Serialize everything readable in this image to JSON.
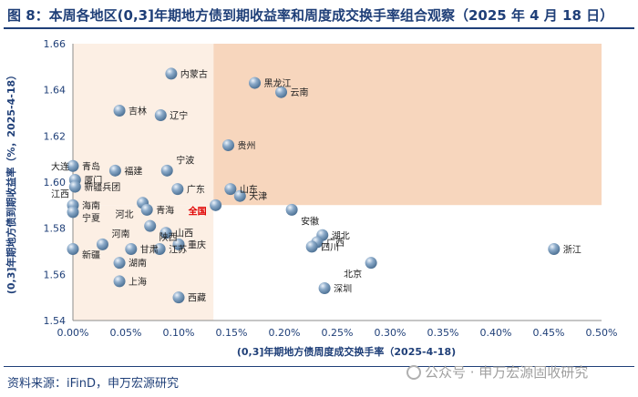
{
  "header": {
    "title": "图 8：本周各地区(0,3]年期地方债到期收益率和周度成交换手率组合观察（2025 年 4 月 18 日）"
  },
  "footer": {
    "source": "资料来源：iFinD，申万宏源研究",
    "watermark": "公众号 · 申万宏源固收研究"
  },
  "colors": {
    "title": "#1f3f78",
    "quadrant_top_right": "#f7d6bd",
    "quadrant_light": "#fcefe4",
    "quadrant_bottom_right": "#ffffff",
    "point": "#8aa9c8",
    "highlight_label": "#e00000",
    "axis_label": "#1f3f78"
  },
  "chart_data": {
    "type": "scatter",
    "xlabel": "(0,3]年期地方债周度成交换手率（2025-4-18)",
    "ylabel": "(0,3]年期地方债到期收益率（%，2025-4-18）",
    "xlim": [
      0,
      0.5
    ],
    "ylim": [
      1.54,
      1.66
    ],
    "x_unit": "percent",
    "y_unit": "percent",
    "x_ticks": [
      "0.00%",
      "0.05%",
      "0.10%",
      "0.15%",
      "0.20%",
      "0.25%",
      "0.30%",
      "0.35%",
      "0.40%",
      "0.45%",
      "0.50%"
    ],
    "y_ticks": [
      "1.54",
      "1.56",
      "1.58",
      "1.60",
      "1.62",
      "1.64",
      "1.66"
    ],
    "x_tick_values": [
      0,
      0.05,
      0.1,
      0.15,
      0.2,
      0.25,
      0.3,
      0.35,
      0.4,
      0.45,
      0.5
    ],
    "y_tick_values": [
      1.54,
      1.56,
      1.58,
      1.6,
      1.62,
      1.64,
      1.66
    ],
    "quadrant_split": {
      "x": 0.133,
      "y": 1.59
    },
    "grid": false,
    "legend": "none",
    "points": [
      {
        "label": "内蒙古",
        "x": 0.093,
        "y": 1.647,
        "lx": 1,
        "ly": 0
      },
      {
        "label": "黑龙江",
        "x": 0.172,
        "y": 1.643,
        "lx": 1,
        "ly": 0
      },
      {
        "label": "云南",
        "x": 0.197,
        "y": 1.639,
        "lx": 1,
        "ly": 0
      },
      {
        "label": "吉林",
        "x": 0.044,
        "y": 1.631,
        "lx": 1,
        "ly": 0
      },
      {
        "label": "辽宁",
        "x": 0.083,
        "y": 1.629,
        "lx": 1,
        "ly": 0
      },
      {
        "label": "贵州",
        "x": 0.147,
        "y": 1.616,
        "lx": 1,
        "ly": 0
      },
      {
        "label": "宁波",
        "x": 0.089,
        "y": 1.605,
        "lx": 1,
        "ly": -2
      },
      {
        "label": "青岛",
        "x": 0.0,
        "y": 1.607,
        "lx": 1,
        "ly": 0
      },
      {
        "label": "大连",
        "x": -0.01,
        "y": 1.607,
        "lx": -1,
        "ly": 0
      },
      {
        "label": "福建",
        "x": 0.04,
        "y": 1.605,
        "lx": 1,
        "ly": 0
      },
      {
        "label": "厦门",
        "x": 0.002,
        "y": 1.601,
        "lx": 1,
        "ly": 0
      },
      {
        "label": "新疆兵团",
        "x": 0.002,
        "y": 1.598,
        "lx": 1,
        "ly": 0
      },
      {
        "label": "广东",
        "x": 0.099,
        "y": 1.597,
        "lx": 1,
        "ly": 0
      },
      {
        "label": "山东",
        "x": 0.149,
        "y": 1.597,
        "lx": 1,
        "ly": 0
      },
      {
        "label": "天津",
        "x": 0.158,
        "y": 1.594,
        "lx": 1,
        "ly": 0
      },
      {
        "label": "江西",
        "x": -0.01,
        "y": 1.595,
        "lx": -1,
        "ly": 0
      },
      {
        "label": "海南",
        "x": 0.0,
        "y": 1.59,
        "lx": 1,
        "ly": 0
      },
      {
        "label": "宁夏",
        "x": 0.0,
        "y": 1.587,
        "lx": 1,
        "ly": 1
      },
      {
        "label": "河北",
        "x": 0.066,
        "y": 1.591,
        "lx": -1,
        "ly": 2
      },
      {
        "label": "青海",
        "x": 0.07,
        "y": 1.588,
        "lx": 1,
        "ly": 0
      },
      {
        "label": "全国",
        "x": 0.135,
        "y": 1.59,
        "lx": -1,
        "ly": 1,
        "highlight": true
      },
      {
        "label": "安徽",
        "x": 0.207,
        "y": 1.588,
        "lx": 1,
        "ly": 2
      },
      {
        "label": "河南",
        "x": 0.028,
        "y": 1.573,
        "lx": 1,
        "ly": -2
      },
      {
        "label": "陕西",
        "x": 0.073,
        "y": 1.581,
        "lx": 1,
        "ly": 2
      },
      {
        "label": "山西",
        "x": 0.088,
        "y": 1.578,
        "lx": 1,
        "ly": 0
      },
      {
        "label": "新疆",
        "x": 0.0,
        "y": 1.571,
        "lx": 1,
        "ly": 1
      },
      {
        "label": "甘肃",
        "x": 0.055,
        "y": 1.571,
        "lx": 1,
        "ly": 0
      },
      {
        "label": "江苏",
        "x": 0.082,
        "y": 1.571,
        "lx": 1,
        "ly": 0
      },
      {
        "label": "重庆",
        "x": 0.1,
        "y": 1.573,
        "lx": 1,
        "ly": 0
      },
      {
        "label": "湖北",
        "x": 0.236,
        "y": 1.577,
        "lx": 1,
        "ly": 0
      },
      {
        "label": "广西",
        "x": 0.231,
        "y": 1.574,
        "lx": 1,
        "ly": 0
      },
      {
        "label": "四川",
        "x": 0.226,
        "y": 1.572,
        "lx": 1,
        "ly": 0
      },
      {
        "label": "浙江",
        "x": 0.455,
        "y": 1.571,
        "lx": 1,
        "ly": 0
      },
      {
        "label": "湖南",
        "x": 0.044,
        "y": 1.565,
        "lx": 1,
        "ly": 0
      },
      {
        "label": "北京",
        "x": 0.282,
        "y": 1.565,
        "lx": -1,
        "ly": 2
      },
      {
        "label": "上海",
        "x": 0.044,
        "y": 1.557,
        "lx": 1,
        "ly": 0
      },
      {
        "label": "深圳",
        "x": 0.238,
        "y": 1.554,
        "lx": 1,
        "ly": 0
      },
      {
        "label": "西藏",
        "x": 0.1,
        "y": 1.55,
        "lx": 1,
        "ly": 0
      }
    ]
  }
}
